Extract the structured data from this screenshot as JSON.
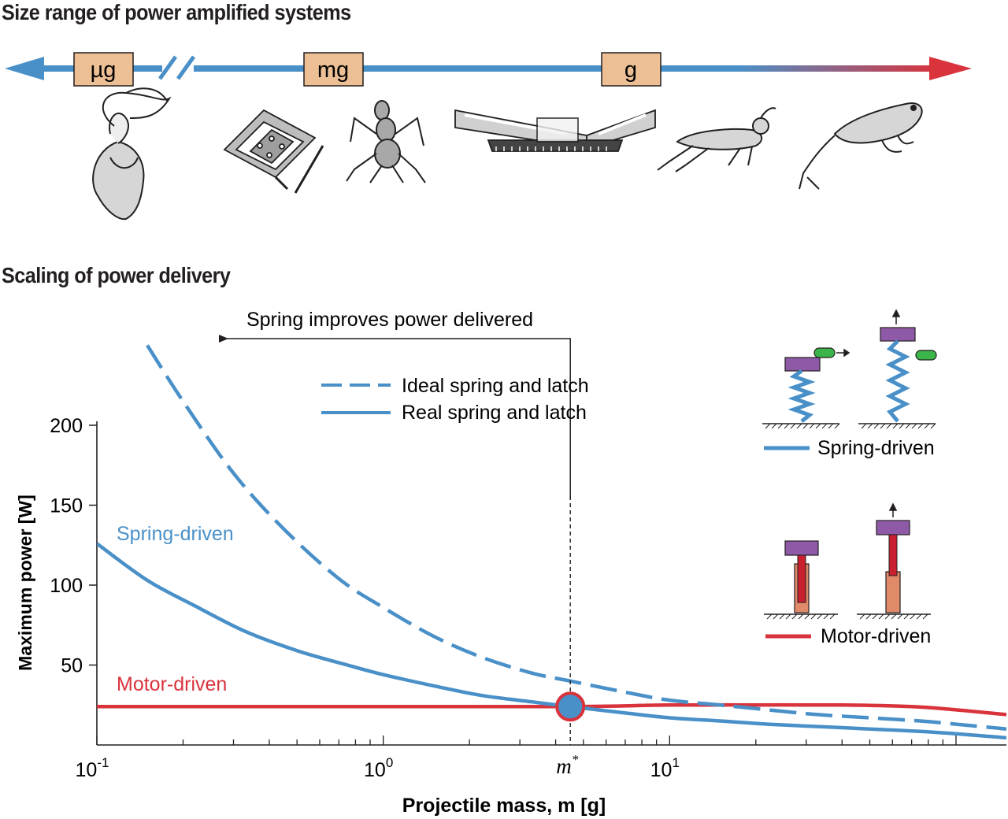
{
  "header": {
    "top_title": "Size range of power amplified systems",
    "bottom_title": "Scaling of power delivery"
  },
  "size_range": {
    "units": [
      "µg",
      "mg",
      "g"
    ],
    "organisms": [
      "mantis-shrimp-icon",
      "microrobot-icon",
      "trap-jaw-ant-icon",
      "jumping-robot-icon",
      "locust-icon",
      "frog-icon"
    ],
    "colors": {
      "small": "#4a90c8",
      "large": "#d9333c",
      "unit_box": "#edbf94"
    }
  },
  "chart_data": {
    "type": "line",
    "xscale": "log",
    "xlim": [
      0.1,
      150
    ],
    "ylim": [
      0,
      200
    ],
    "xlabel": "Projectile mass, m [g]",
    "ylabel": "Maximum power  [W]",
    "x_ticks": [
      {
        "value": 0.1,
        "base": "10",
        "exp": "-1"
      },
      {
        "value": 1,
        "base": "10",
        "exp": "0"
      },
      {
        "value": 10,
        "base": "10",
        "exp": "1"
      }
    ],
    "y_ticks": [
      50,
      100,
      150,
      200
    ],
    "series": [
      {
        "name": "Spring-driven",
        "style": "solid",
        "color": "#4a90c8",
        "points": [
          [
            0.1,
            126
          ],
          [
            0.15,
            103
          ],
          [
            0.22,
            87
          ],
          [
            0.33,
            71
          ],
          [
            0.5,
            59
          ],
          [
            0.75,
            50
          ],
          [
            1,
            44
          ],
          [
            1.5,
            37
          ],
          [
            2.2,
            31
          ],
          [
            3.3,
            27
          ],
          [
            4.5,
            24
          ],
          [
            7,
            20
          ],
          [
            10,
            17
          ],
          [
            15,
            15
          ],
          [
            22,
            13
          ],
          [
            33,
            11.5
          ],
          [
            50,
            10
          ],
          [
            75,
            8.5
          ],
          [
            100,
            7
          ],
          [
            150,
            4.5
          ]
        ]
      },
      {
        "name": "Ideal spring and latch",
        "style": "dashed",
        "color": "#4a90c8",
        "points": [
          [
            0.15,
            250
          ],
          [
            0.2,
            215
          ],
          [
            0.3,
            170
          ],
          [
            0.45,
            135
          ],
          [
            0.7,
            104
          ],
          [
            1,
            86
          ],
          [
            1.5,
            68
          ],
          [
            2.2,
            55
          ],
          [
            3.3,
            45
          ],
          [
            4.5,
            40
          ],
          [
            7,
            33
          ],
          [
            10,
            28
          ],
          [
            15,
            25
          ],
          [
            22,
            22
          ],
          [
            33,
            19
          ],
          [
            50,
            17
          ],
          [
            75,
            15
          ],
          [
            100,
            13
          ],
          [
            150,
            10
          ]
        ]
      },
      {
        "name": "Motor-driven",
        "style": "solid",
        "color": "#d9333c",
        "points": [
          [
            0.1,
            24
          ],
          [
            1,
            24
          ],
          [
            4.5,
            24
          ],
          [
            10,
            25
          ],
          [
            20,
            25
          ],
          [
            40,
            25
          ],
          [
            70,
            24
          ],
          [
            100,
            22
          ],
          [
            150,
            19
          ]
        ]
      }
    ],
    "crossover": {
      "x": 4.5,
      "y": 24,
      "label": "m",
      "sup": "*"
    },
    "annotations": {
      "spring_improves": "Spring improves power delivered",
      "spring_driven": "Spring-driven",
      "motor_driven": "Motor-driven"
    },
    "legend": [
      {
        "label": "Ideal spring and latch",
        "style": "dashed"
      },
      {
        "label": "Real spring and latch",
        "style": "solid"
      }
    ],
    "legend_position": "top-center",
    "insets": [
      {
        "label": "Spring-driven",
        "color": "#4a90c8"
      },
      {
        "label": "Motor-driven",
        "color": "#d9333c"
      }
    ]
  }
}
